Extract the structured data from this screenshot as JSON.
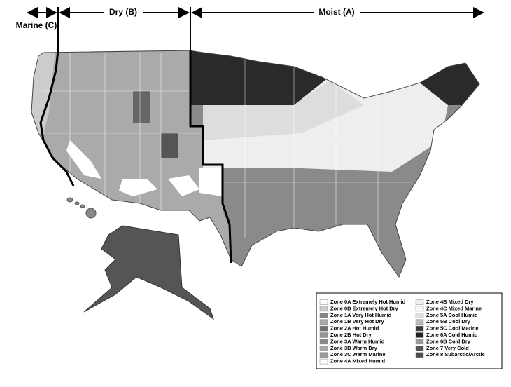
{
  "header": {
    "marine": "Marine (C)",
    "dry": "Dry (B)",
    "moist": "Moist (A)"
  },
  "legend": {
    "items": [
      {
        "label": "Zone 0A Extremely Hot Humid",
        "color": "#ffffff"
      },
      {
        "label": "Zone 0B Extremely Hot Dry",
        "color": "#cccccc"
      },
      {
        "label": "Zone 1A Very Hot Humid",
        "color": "#858585"
      },
      {
        "label": "Zone 1B Very Hot Dry",
        "color": "#aaaaaa"
      },
      {
        "label": "Zone 2A Hot Humid",
        "color": "#707070"
      },
      {
        "label": "Zone 2B Hot Dry",
        "color": "#959595"
      },
      {
        "label": "Zone 3A Warm Humid",
        "color": "#8a8a8a"
      },
      {
        "label": "Zone 3B Warm Dry",
        "color": "#a8a8a8"
      },
      {
        "label": "Zone 3C Warm Marine",
        "color": "#9a9a9a"
      },
      {
        "label": "Zone 4A Mixed Humid",
        "color": "#ffffff"
      },
      {
        "label": "Zone 4B Mixed Dry",
        "color": "#f0f0f0"
      },
      {
        "label": "Zone 4C Mixed Marine",
        "color": "#f6f6f6"
      },
      {
        "label": "Zone 5A Cool Humid",
        "color": "#dddddd"
      },
      {
        "label": "Zone 5B Cool Dry",
        "color": "#bbbbbb"
      },
      {
        "label": "Zone 5C Cool Marine",
        "color": "#3a3a3a"
      },
      {
        "label": "Zone 6A Cold Humid",
        "color": "#222222"
      },
      {
        "label": "Zone 6B Cold Dry",
        "color": "#999999"
      },
      {
        "label": "Zone 7 Very Cold",
        "color": "#555555"
      },
      {
        "label": "Zone 8 Subarctic/Arctic",
        "color": "#4e4e4e"
      }
    ]
  }
}
